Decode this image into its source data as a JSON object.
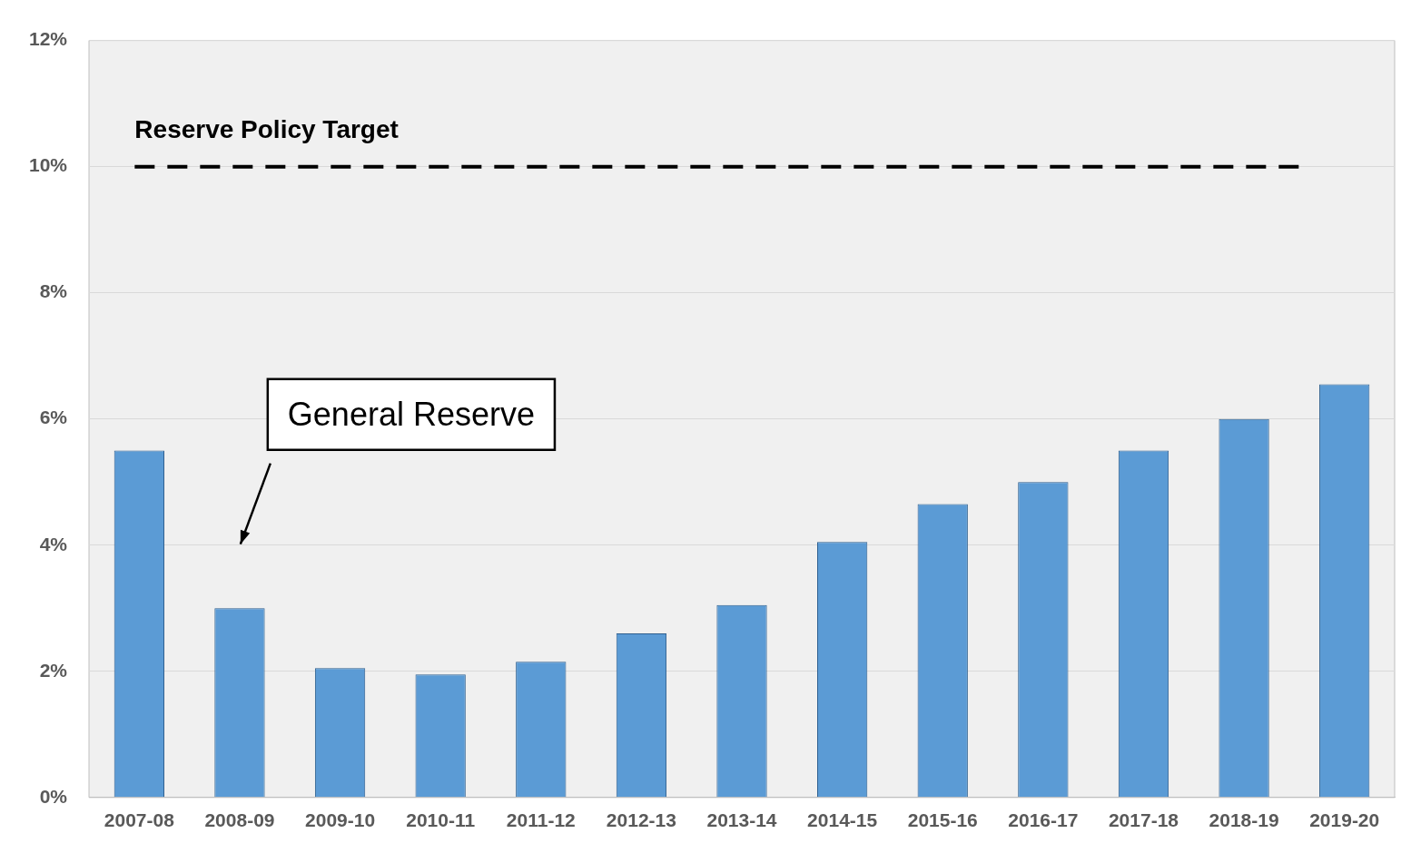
{
  "chart_data": {
    "type": "bar",
    "categories": [
      "2007-08",
      "2008-09",
      "2009-10",
      "2010-11",
      "2011-12",
      "2012-13",
      "2013-14",
      "2014-15",
      "2015-16",
      "2016-17",
      "2017-18",
      "2018-19",
      "2019-20"
    ],
    "values": [
      5.5,
      3.0,
      2.05,
      1.95,
      2.15,
      2.6,
      3.05,
      4.05,
      4.65,
      5.0,
      5.5,
      6.0,
      6.55
    ],
    "color": "#5b9bd5",
    "ylim": [
      0,
      12
    ],
    "yticks": [
      {
        "value": 0,
        "label": "0%"
      },
      {
        "value": 2,
        "label": "2%"
      },
      {
        "value": 4,
        "label": "4%"
      },
      {
        "value": 6,
        "label": "6%"
      },
      {
        "value": 8,
        "label": "8%"
      },
      {
        "value": 10,
        "label": "10%"
      },
      {
        "value": 12,
        "label": "12%"
      }
    ],
    "grid": "y",
    "legend": false,
    "ref_lines": [
      {
        "axis": "y",
        "value": 10,
        "label": "Reserve Policy Target",
        "color": "#000000",
        "line_style": "dashed"
      }
    ],
    "annotations": [
      "General Reserve"
    ]
  }
}
